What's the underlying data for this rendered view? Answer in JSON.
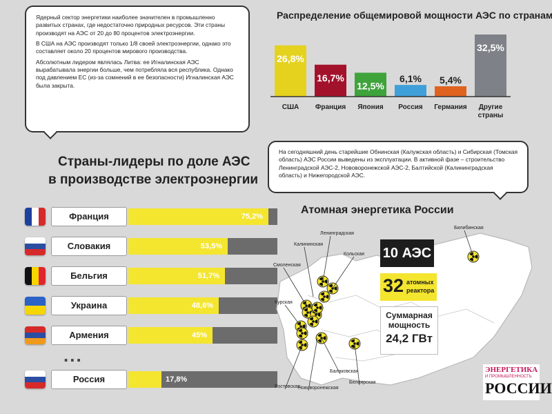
{
  "colors": {
    "yellow": "#f4e52f",
    "dark": "#222222",
    "gray": "#6c6c6c",
    "bg": "#d9d9d9"
  },
  "info_bubble": {
    "p1": "Ядерный сектор энергетики наиболее значителен в промышленно развитых странах, где недостаточно природных ресурсов. Эти страны производят на АЭС от 20 до 80 процентов электроэнергии.",
    "p2": "В США на АЭС производят только 1/8 своей электроэнергии, однако это составляет около 20 процентов мирового производства.",
    "p3": "Абсолютным лидером являлась Литва: ее Игналинская АЭС вырабатывала энергии больше, чем потребляла вся республика. Однако под давлением ЕС (из-за сомнений в ее безопасности) Игналинская АЭС была закрыта."
  },
  "russia_bubble": {
    "text": "На сегодняшний день старейшие Обнинская (Калужская область) и Сибирская (Томская область) АЭС России выведены из эксплуатации. В активной фазе – строительство Ленинградской АЭС-2, Нововоронежской АЭС-2, Балтийской (Калининградская область) и Нижегородской АЭС."
  },
  "leaders_title": {
    "line1": "Страны-лидеры по доле АЭС",
    "line2": "в производстве электроэнергии"
  },
  "russia_title": "Атомная энергетика России",
  "ellipsis": "...",
  "chart_data": [
    {
      "type": "bar",
      "title": "Распределение общемировой мощности АЭС по странам",
      "categories": [
        "США",
        "Франция",
        "Япония",
        "Россия",
        "Германия",
        "Другие страны"
      ],
      "values": [
        26.8,
        16.7,
        12.5,
        6.1,
        5.4,
        32.5
      ],
      "value_labels": [
        "26,8%",
        "16,7%",
        "12,5%",
        "6,1%",
        "5,4%",
        "32,5%"
      ],
      "bar_colors": [
        "#e5d21f",
        "#a3122b",
        "#3fa33c",
        "#3f9fd9",
        "#e0621f",
        "#7e8187"
      ],
      "label_colors": [
        "#ffffff",
        "#ffffff",
        "#ffffff",
        "#222222",
        "#222222",
        "#ffffff"
      ],
      "unit": "%"
    },
    {
      "type": "bar",
      "title": "Страны-лидеры по доле АЭС в производстве электроэнергии",
      "orientation": "horizontal",
      "categories": [
        "Франция",
        "Словакия",
        "Бельгия",
        "Украина",
        "Армения",
        "Россия"
      ],
      "values": [
        75.2,
        53.5,
        51.7,
        48.6,
        45,
        17.8
      ],
      "value_labels": [
        "75,2%",
        "53,5%",
        "51,7%",
        "48,6%",
        "45%",
        "17,8%"
      ],
      "xlim": [
        0,
        100
      ],
      "unit": "%"
    }
  ],
  "flags": [
    {
      "country": "Франция",
      "stripes": [
        "#1f3f9e",
        "#ffffff",
        "#d62a2a"
      ],
      "dir": "v"
    },
    {
      "country": "Словакия",
      "stripes": [
        "#ffffff",
        "#2b4ea2",
        "#d62a2a"
      ],
      "dir": "h"
    },
    {
      "country": "Бельгия",
      "stripes": [
        "#111111",
        "#f6d500",
        "#e0262c"
      ],
      "dir": "v"
    },
    {
      "country": "Украина",
      "stripes": [
        "#2a62c8",
        "#f6d500"
      ],
      "dir": "h"
    },
    {
      "country": "Армения",
      "stripes": [
        "#d62a2a",
        "#2b4ea2",
        "#f09a1c"
      ],
      "dir": "h"
    },
    {
      "country": "Россия",
      "stripes": [
        "#ffffff",
        "#2b4ea2",
        "#d62a2a"
      ],
      "dir": "h"
    }
  ],
  "russia_stats": {
    "npp_count": "10 АЭС",
    "reactors_num": "32",
    "reactors_label1": "атомных",
    "reactors_label2": "реактора",
    "capacity_line1": "Суммарная",
    "capacity_line2": "мощность",
    "capacity_value": "24,2 ГВт"
  },
  "map_labels": [
    "Ленинградская",
    "Калининская",
    "Кольская",
    "Смоленская",
    "Курская",
    "Ростовская",
    "Нововоронежская",
    "Балаковская",
    "Белоярская",
    "Билибинская"
  ],
  "logo": {
    "line1": "ЭНЕРГЕТИКА",
    "line2": "И ПРОМЫШЛЕННОСТЬ",
    "line3": "РОССИИ"
  }
}
